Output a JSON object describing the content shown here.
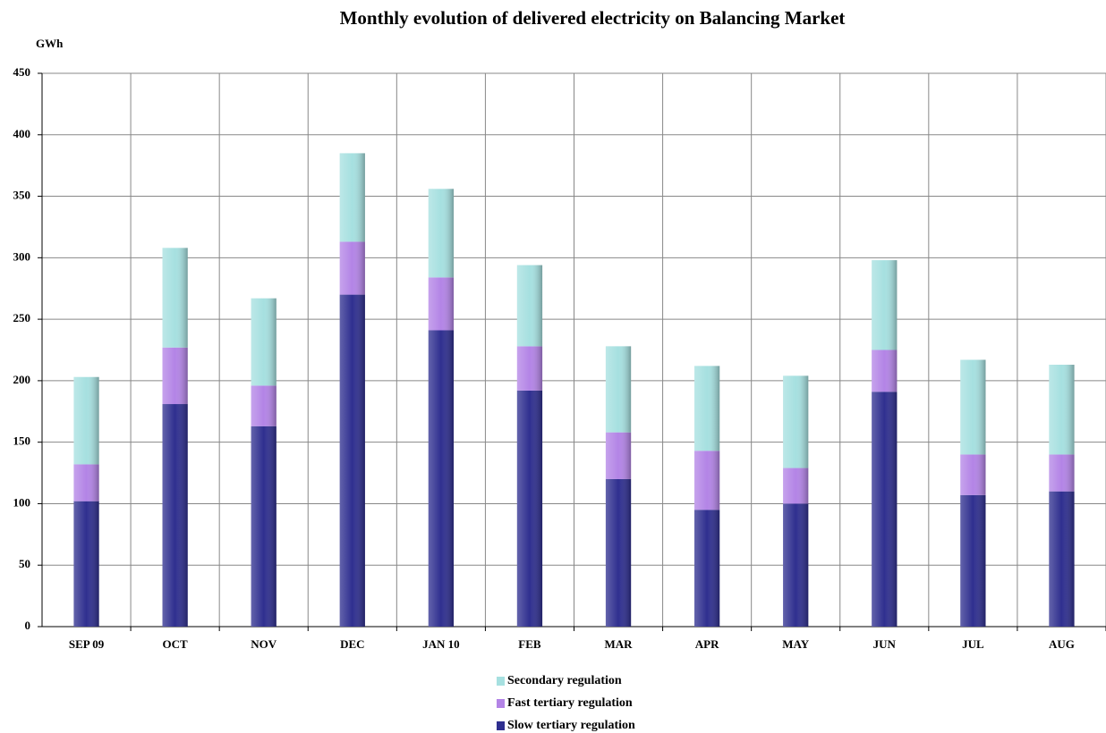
{
  "chart_data": {
    "type": "stacked-bar",
    "title": "Monthly evolution of delivered electricity on Balancing Market",
    "y_label": "GWh",
    "categories": [
      "SEP 09",
      "OCT",
      "NOV",
      "DEC",
      "JAN 10",
      "FEB",
      "MAR",
      "APR",
      "MAY",
      "JUN",
      "JUL",
      "AUG"
    ],
    "series": [
      {
        "name": "Slow tertiary regulation",
        "color": "#2f2f8f",
        "values": [
          102,
          181,
          163,
          270,
          241,
          192,
          120,
          95,
          100,
          191,
          107,
          110
        ]
      },
      {
        "name": "Fast tertiary regulation",
        "color": "#b384e6",
        "values": [
          30,
          46,
          33,
          43,
          43,
          36,
          38,
          48,
          29,
          34,
          33,
          30
        ]
      },
      {
        "name": "Secondary regulation",
        "color": "#a6e0e0",
        "values": [
          71,
          81,
          71,
          72,
          72,
          66,
          70,
          69,
          75,
          73,
          77,
          73
        ]
      }
    ],
    "ylim": [
      0,
      450
    ],
    "yticks": [
      0,
      50,
      100,
      150,
      200,
      250,
      300,
      350,
      400,
      450
    ],
    "grid": true
  }
}
